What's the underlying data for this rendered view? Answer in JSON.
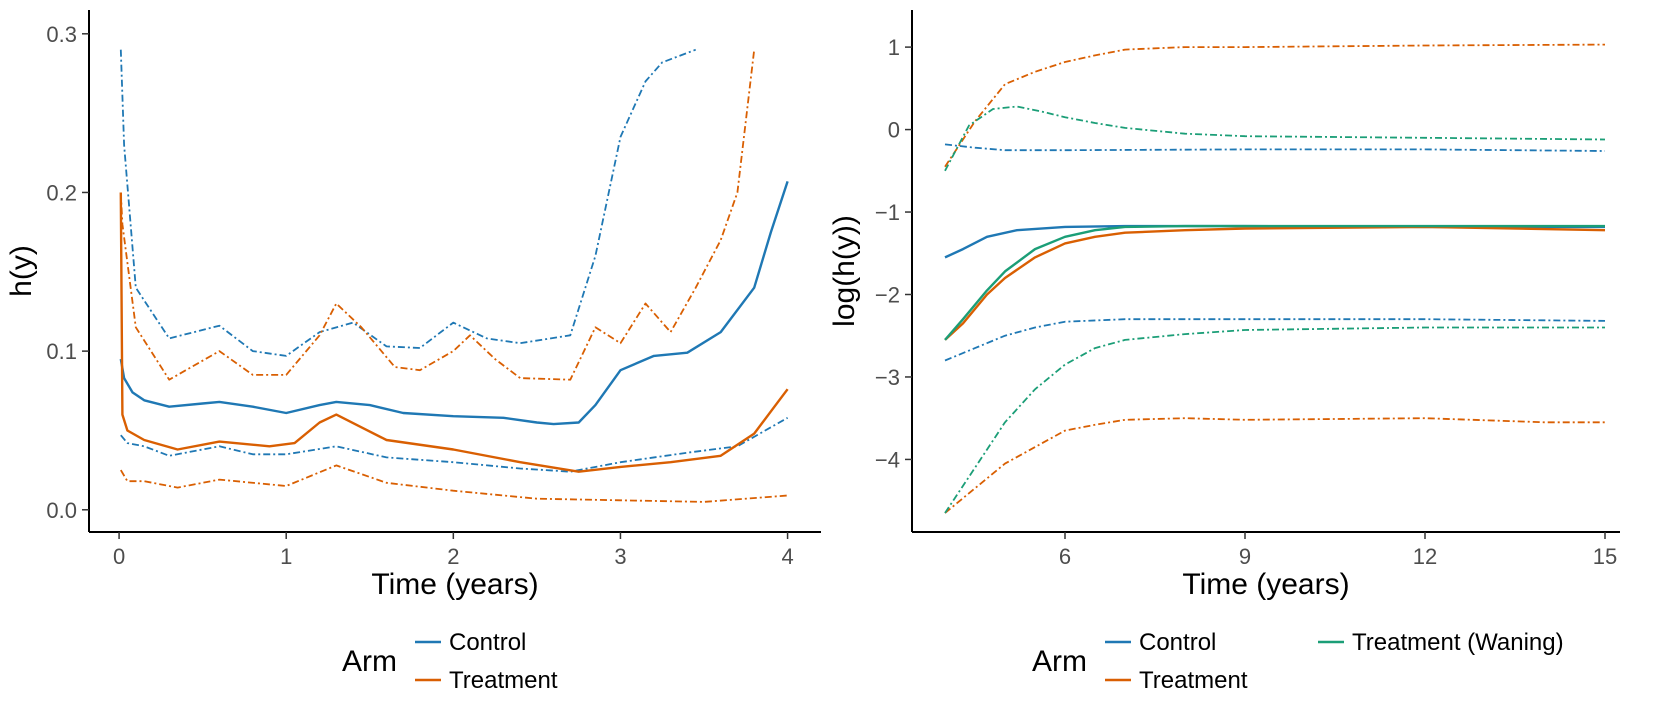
{
  "colors": {
    "Control": "#1f78b4",
    "Treatment": "#d95f02",
    "Treatment (Waning)": "#1b9e77"
  },
  "chart_data": [
    {
      "type": "line",
      "xlabel": "Time (years)",
      "ylabel": "h(y)",
      "xlim": [
        -0.18,
        4.2
      ],
      "ylim": [
        -0.014,
        0.315
      ],
      "xticks": [
        0,
        1,
        2,
        3,
        4
      ],
      "xtick_labels": [
        "0",
        "1",
        "2",
        "3",
        "4"
      ],
      "yticks": [
        0.0,
        0.1,
        0.2,
        0.3
      ],
      "ytick_labels": [
        "0.0",
        "0.1",
        "0.2",
        "0.3"
      ],
      "legend": {
        "title": "Arm",
        "position": "bottom",
        "entries": [
          "Control",
          "Treatment"
        ]
      },
      "series": [
        {
          "name": "Control",
          "style": "solid",
          "x": [
            0.01,
            0.03,
            0.08,
            0.15,
            0.3,
            0.5,
            0.6,
            0.8,
            1.0,
            1.2,
            1.3,
            1.5,
            1.7,
            2.0,
            2.3,
            2.5,
            2.6,
            2.75,
            2.85,
            3.0,
            3.2,
            3.4,
            3.6,
            3.8,
            3.9,
            4.0
          ],
          "y": [
            0.095,
            0.083,
            0.074,
            0.069,
            0.065,
            0.067,
            0.068,
            0.065,
            0.061,
            0.066,
            0.068,
            0.066,
            0.061,
            0.059,
            0.058,
            0.055,
            0.054,
            0.055,
            0.066,
            0.088,
            0.097,
            0.099,
            0.112,
            0.14,
            0.175,
            0.207
          ]
        },
        {
          "name": "Control",
          "style": "dashed",
          "x": [
            0.01,
            0.03,
            0.1,
            0.3,
            0.6,
            0.8,
            1.0,
            1.2,
            1.4,
            1.6,
            1.8,
            2.0,
            2.2,
            2.4,
            2.7,
            2.85,
            3.0,
            3.15,
            3.25,
            3.45
          ],
          "y": [
            0.29,
            0.23,
            0.14,
            0.108,
            0.116,
            0.1,
            0.097,
            0.112,
            0.118,
            0.103,
            0.102,
            0.118,
            0.108,
            0.105,
            0.11,
            0.16,
            0.235,
            0.27,
            0.282,
            0.29
          ]
        },
        {
          "name": "Control",
          "style": "dashed",
          "x": [
            0.01,
            0.05,
            0.15,
            0.3,
            0.6,
            0.8,
            1.0,
            1.3,
            1.6,
            2.0,
            2.4,
            2.7,
            3.0,
            3.4,
            3.7,
            4.0
          ],
          "y": [
            0.047,
            0.042,
            0.04,
            0.034,
            0.04,
            0.035,
            0.035,
            0.04,
            0.033,
            0.03,
            0.026,
            0.024,
            0.03,
            0.036,
            0.04,
            0.058
          ]
        },
        {
          "name": "Treatment",
          "style": "solid",
          "x": [
            0.01,
            0.02,
            0.05,
            0.15,
            0.35,
            0.6,
            0.9,
            1.05,
            1.2,
            1.3,
            1.45,
            1.6,
            2.0,
            2.4,
            2.75,
            3.0,
            3.3,
            3.6,
            3.8,
            3.95,
            4.0
          ],
          "y": [
            0.2,
            0.06,
            0.05,
            0.044,
            0.038,
            0.043,
            0.04,
            0.042,
            0.055,
            0.06,
            0.052,
            0.044,
            0.038,
            0.03,
            0.024,
            0.027,
            0.03,
            0.034,
            0.048,
            0.069,
            0.076
          ]
        },
        {
          "name": "Treatment",
          "style": "dashed",
          "x": [
            0.01,
            0.02,
            0.1,
            0.3,
            0.6,
            0.8,
            1.0,
            1.2,
            1.3,
            1.45,
            1.65,
            1.8,
            2.0,
            2.1,
            2.25,
            2.4,
            2.7,
            2.85,
            3.0,
            3.15,
            3.3,
            3.45,
            3.6,
            3.7,
            3.8
          ],
          "y": [
            0.2,
            0.18,
            0.115,
            0.082,
            0.1,
            0.085,
            0.085,
            0.11,
            0.13,
            0.115,
            0.09,
            0.088,
            0.1,
            0.11,
            0.095,
            0.083,
            0.082,
            0.115,
            0.105,
            0.13,
            0.112,
            0.14,
            0.17,
            0.2,
            0.29
          ]
        },
        {
          "name": "Treatment",
          "style": "dashed",
          "x": [
            0.01,
            0.05,
            0.15,
            0.35,
            0.6,
            1.0,
            1.3,
            1.6,
            2.0,
            2.5,
            3.0,
            3.5,
            4.0
          ],
          "y": [
            0.025,
            0.018,
            0.018,
            0.014,
            0.019,
            0.015,
            0.028,
            0.017,
            0.012,
            0.007,
            0.006,
            0.005,
            0.009
          ]
        }
      ]
    },
    {
      "type": "line",
      "xlabel": "Time (years)",
      "ylabel": "log(h(y))",
      "xlim": [
        3.45,
        15.25
      ],
      "ylim": [
        -4.88,
        1.45
      ],
      "xticks": [
        6,
        9,
        12,
        15
      ],
      "xtick_labels": [
        "6",
        "9",
        "12",
        "15"
      ],
      "yticks": [
        1,
        0,
        -1,
        -2,
        -3,
        -4
      ],
      "ytick_labels": [
        "1",
        "0",
        "−1",
        "−2",
        "−3",
        "−4"
      ],
      "legend": {
        "title": "Arm",
        "position": "bottom",
        "entries": [
          "Control",
          "Treatment",
          "Treatment (Waning)"
        ]
      },
      "series": [
        {
          "name": "Control",
          "style": "solid",
          "x": [
            4.0,
            4.3,
            4.7,
            5.2,
            6.0,
            7.0,
            9.0,
            12.0,
            15.0
          ],
          "y": [
            -1.55,
            -1.45,
            -1.3,
            -1.22,
            -1.18,
            -1.17,
            -1.17,
            -1.18,
            -1.18
          ]
        },
        {
          "name": "Control",
          "style": "dashed",
          "x": [
            4.0,
            4.5,
            5.0,
            6.0,
            9.0,
            12.0,
            15.0
          ],
          "y": [
            -0.18,
            -0.22,
            -0.25,
            -0.25,
            -0.24,
            -0.24,
            -0.26
          ]
        },
        {
          "name": "Control",
          "style": "dashed",
          "x": [
            4.0,
            4.5,
            5.0,
            5.5,
            6.0,
            7.0,
            9.0,
            12.0,
            15.0
          ],
          "y": [
            -2.8,
            -2.65,
            -2.5,
            -2.4,
            -2.33,
            -2.3,
            -2.3,
            -2.3,
            -2.32
          ]
        },
        {
          "name": "Treatment",
          "style": "solid",
          "x": [
            4.0,
            4.3,
            4.7,
            5.0,
            5.5,
            6.0,
            6.5,
            7.0,
            8.0,
            9.0,
            12.0,
            15.0
          ],
          "y": [
            -2.55,
            -2.35,
            -2.0,
            -1.8,
            -1.55,
            -1.38,
            -1.3,
            -1.25,
            -1.22,
            -1.2,
            -1.18,
            -1.22
          ]
        },
        {
          "name": "Treatment",
          "style": "dashed",
          "x": [
            4.0,
            4.5,
            5.0,
            5.5,
            6.0,
            6.5,
            7.0,
            8.0,
            9.0,
            12.0,
            15.0
          ],
          "y": [
            -0.45,
            0.1,
            0.55,
            0.7,
            0.82,
            0.9,
            0.97,
            1.0,
            1.0,
            1.02,
            1.03
          ]
        },
        {
          "name": "Treatment",
          "style": "dashed",
          "x": [
            4.0,
            4.5,
            5.0,
            5.5,
            6.0,
            6.5,
            7.0,
            8.0,
            9.0,
            12.0,
            14.0,
            15.0
          ],
          "y": [
            -4.65,
            -4.35,
            -4.05,
            -3.85,
            -3.65,
            -3.58,
            -3.52,
            -3.5,
            -3.52,
            -3.5,
            -3.55,
            -3.55
          ]
        },
        {
          "name": "Treatment (Waning)",
          "style": "solid",
          "x": [
            4.0,
            4.3,
            4.7,
            5.0,
            5.5,
            6.0,
            6.5,
            7.0,
            8.0,
            9.0,
            12.0,
            15.0
          ],
          "y": [
            -2.55,
            -2.3,
            -1.95,
            -1.72,
            -1.45,
            -1.3,
            -1.22,
            -1.18,
            -1.17,
            -1.17,
            -1.17,
            -1.17
          ]
        },
        {
          "name": "Treatment (Waning)",
          "style": "dashed",
          "x": [
            4.0,
            4.4,
            4.8,
            5.2,
            5.6,
            6.0,
            6.5,
            7.0,
            8.0,
            9.0,
            12.0,
            15.0
          ],
          "y": [
            -0.5,
            0.05,
            0.25,
            0.28,
            0.22,
            0.15,
            0.08,
            0.02,
            -0.05,
            -0.08,
            -0.1,
            -0.12
          ]
        },
        {
          "name": "Treatment (Waning)",
          "style": "dashed",
          "x": [
            4.0,
            4.5,
            5.0,
            5.5,
            6.0,
            6.5,
            7.0,
            8.0,
            9.0,
            12.0,
            15.0
          ],
          "y": [
            -4.65,
            -4.1,
            -3.55,
            -3.15,
            -2.85,
            -2.65,
            -2.55,
            -2.48,
            -2.43,
            -2.4,
            -2.4
          ]
        }
      ]
    }
  ]
}
